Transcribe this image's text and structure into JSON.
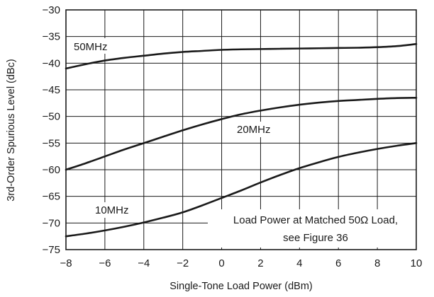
{
  "chart_data": {
    "type": "line",
    "xlabel": "Single-Tone Load Power (dBm)",
    "ylabel": "3rd-Order Spurious Level (dBc)",
    "xlim": [
      -8,
      10
    ],
    "ylim": [
      -75,
      -30
    ],
    "xticks": [
      -8,
      -6,
      -4,
      -2,
      0,
      2,
      4,
      6,
      8,
      10
    ],
    "yticks": [
      -30,
      -35,
      -40,
      -45,
      -50,
      -55,
      -60,
      -65,
      -70,
      -75
    ],
    "xtick_labels": [
      "−8",
      "−6",
      "−4",
      "−2",
      "0",
      "2",
      "4",
      "6",
      "8",
      "10"
    ],
    "ytick_labels": [
      "−30",
      "−35",
      "−40",
      "−45",
      "−50",
      "−55",
      "−60",
      "−65",
      "−70",
      "−75"
    ],
    "grid": true,
    "series": [
      {
        "name": "50MHz",
        "x": [
          -8,
          -7,
          -6,
          -5,
          -4,
          -3,
          -2,
          -1,
          0,
          1,
          2,
          3,
          4,
          5,
          6,
          7,
          8,
          9,
          10
        ],
        "y": [
          -41,
          -40.2,
          -39.5,
          -39,
          -38.6,
          -38.2,
          -37.9,
          -37.7,
          -37.5,
          -37.4,
          -37.35,
          -37.3,
          -37.25,
          -37.2,
          -37.15,
          -37.1,
          -37,
          -36.8,
          -36.4
        ]
      },
      {
        "name": "20MHz",
        "x": [
          -8,
          -7,
          -6,
          -5,
          -4,
          -3,
          -2,
          -1,
          0,
          1,
          2,
          3,
          4,
          5,
          6,
          7,
          8,
          9,
          10
        ],
        "y": [
          -60,
          -58.8,
          -57.5,
          -56.2,
          -55,
          -53.8,
          -52.6,
          -51.5,
          -50.5,
          -49.6,
          -48.9,
          -48.3,
          -47.8,
          -47.4,
          -47.1,
          -46.9,
          -46.7,
          -46.55,
          -46.5
        ]
      },
      {
        "name": "10MHz",
        "x": [
          -8,
          -7,
          -6,
          -5,
          -4,
          -3,
          -2,
          -1,
          0,
          1,
          2,
          3,
          4,
          5,
          6,
          7,
          8,
          9,
          10
        ],
        "y": [
          -72.5,
          -72,
          -71.4,
          -70.7,
          -69.9,
          -69,
          -68,
          -66.7,
          -65.3,
          -63.9,
          -62.4,
          -61,
          -59.7,
          -58.6,
          -57.6,
          -56.8,
          -56.1,
          -55.5,
          -55
        ]
      }
    ],
    "annotations": [
      {
        "text": "Load Power at Matched 50Ω Load,"
      },
      {
        "text": "see Figure 36"
      }
    ]
  }
}
